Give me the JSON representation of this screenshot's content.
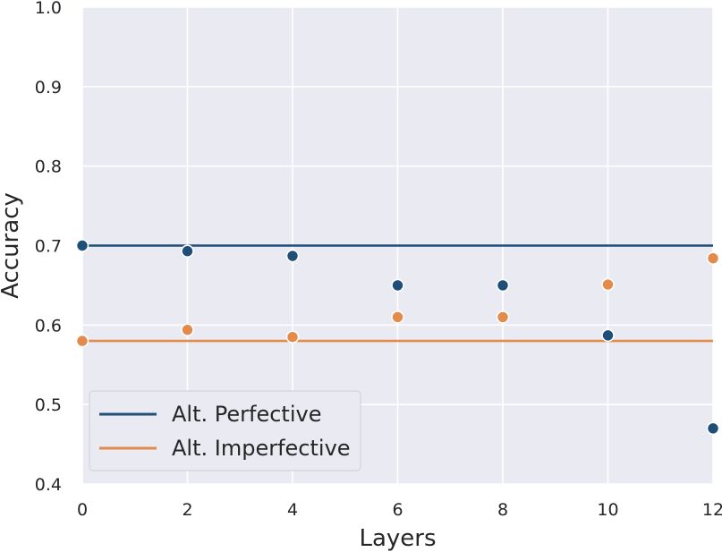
{
  "chart_data": {
    "type": "scatter",
    "xlabel": "Layers",
    "ylabel": "Accuracy",
    "xlim": [
      0,
      12
    ],
    "ylim": [
      0.4,
      1.0
    ],
    "xticks": [
      0,
      2,
      4,
      6,
      8,
      10,
      12
    ],
    "yticks": [
      0.4,
      0.5,
      0.6,
      0.7,
      0.8,
      0.9,
      1.0
    ],
    "grid": true,
    "legend_position": "lower-left",
    "series": [
      {
        "name": "Alt. Perfective",
        "color": "#1f4e79",
        "baseline": 0.7,
        "x": [
          0,
          2,
          4,
          6,
          8,
          10,
          12
        ],
        "y": [
          0.7,
          0.693,
          0.687,
          0.65,
          0.65,
          0.587,
          0.47
        ]
      },
      {
        "name": "Alt. Imperfective",
        "color": "#e38b4a",
        "baseline": 0.58,
        "x": [
          0,
          2,
          4,
          6,
          8,
          10,
          12
        ],
        "y": [
          0.58,
          0.594,
          0.585,
          0.61,
          0.61,
          0.651,
          0.684
        ]
      }
    ]
  }
}
